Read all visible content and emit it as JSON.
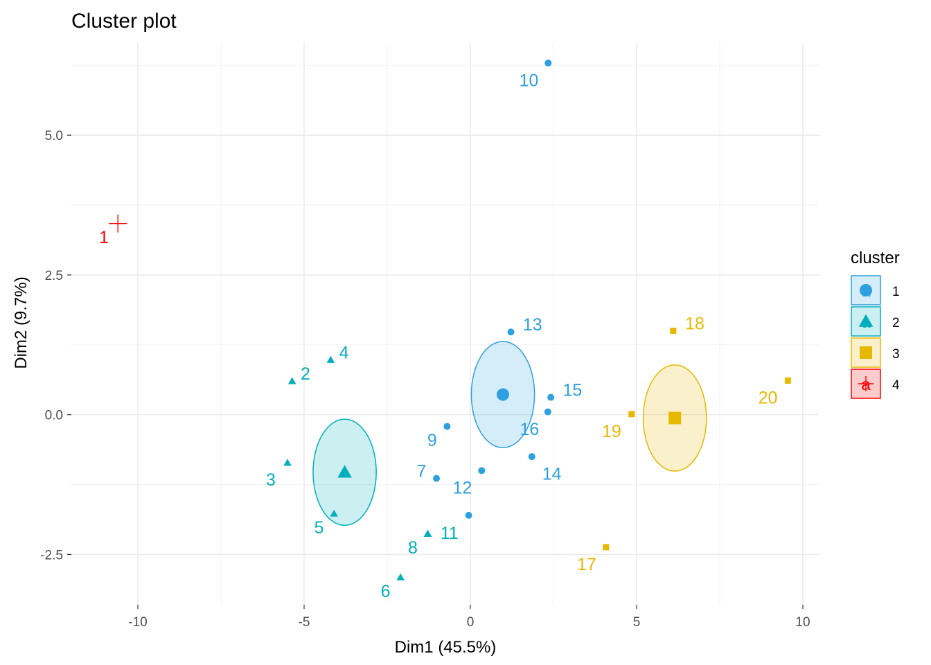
{
  "chart_data": {
    "type": "scatter",
    "title": "Cluster plot",
    "xlabel": "Dim1 (45.5%)",
    "ylabel": "Dim2 (9.7%)",
    "xlim": [
      -12,
      10.5
    ],
    "ylim": [
      -3.4,
      6.65
    ],
    "x_ticks": [
      -10,
      -5,
      0,
      5,
      10
    ],
    "x_tick_labels": [
      "-10",
      "-5",
      "0",
      "5",
      "10"
    ],
    "y_ticks": [
      -2.5,
      0,
      2.5,
      5
    ],
    "y_tick_labels": [
      "-2.5",
      "0.0",
      "2.5",
      "5.0"
    ],
    "grid": true,
    "legend_title": "cluster",
    "legend_placement": "right",
    "legend_glyph": "a",
    "clusters": [
      {
        "id": "1",
        "color": "#2E9FDF",
        "shape": "circle",
        "center": [
          0.98,
          0.36
        ],
        "ellipse_radius": [
          0.95,
          0.95
        ]
      },
      {
        "id": "2",
        "color": "#00AFBB",
        "shape": "triangle",
        "center": [
          -3.78,
          -1.03
        ],
        "ellipse_radius": [
          0.95,
          0.95
        ]
      },
      {
        "id": "3",
        "color": "#E7B800",
        "shape": "square",
        "center": [
          6.15,
          -0.06
        ],
        "ellipse_radius": [
          0.95,
          0.95
        ]
      },
      {
        "id": "4",
        "color": "#FC0000",
        "shape": "cross",
        "center": [
          -10.6,
          3.42
        ],
        "ellipse_radius": [
          0,
          0
        ]
      }
    ],
    "points": [
      {
        "label": "1",
        "cluster": "4",
        "x": -10.6,
        "y": 3.42
      },
      {
        "label": "2",
        "cluster": "2",
        "x": -5.36,
        "y": 0.6
      },
      {
        "label": "3",
        "cluster": "2",
        "x": -5.5,
        "y": -0.86
      },
      {
        "label": "4",
        "cluster": "2",
        "x": -4.2,
        "y": 0.98
      },
      {
        "label": "5",
        "cluster": "2",
        "x": -4.1,
        "y": -1.77
      },
      {
        "label": "6",
        "cluster": "2",
        "x": -2.1,
        "y": -2.91
      },
      {
        "label": "7",
        "cluster": "1",
        "x": -1.02,
        "y": -1.14
      },
      {
        "label": "8",
        "cluster": "2",
        "x": -1.28,
        "y": -2.13
      },
      {
        "label": "9",
        "cluster": "1",
        "x": -0.7,
        "y": -0.21
      },
      {
        "label": "10",
        "cluster": "1",
        "x": 2.34,
        "y": 6.29
      },
      {
        "label": "11",
        "cluster": "2",
        "x": -1.28,
        "y": -2.13
      },
      {
        "label": "12",
        "cluster": "1",
        "x": 0.34,
        "y": -1.0
      },
      {
        "label": "13",
        "cluster": "1",
        "x": 1.22,
        "y": 1.48
      },
      {
        "label": "14",
        "cluster": "1",
        "x": 1.85,
        "y": -0.75
      },
      {
        "label": "15",
        "cluster": "1",
        "x": 2.42,
        "y": 0.31
      },
      {
        "label": "16",
        "cluster": "1",
        "x": 2.33,
        "y": 0.05
      },
      {
        "label": "17",
        "cluster": "3",
        "x": 4.08,
        "y": -2.37
      },
      {
        "label": "18",
        "cluster": "3",
        "x": 6.1,
        "y": 1.5
      },
      {
        "label": "19",
        "cluster": "3",
        "x": 4.85,
        "y": 0.01
      },
      {
        "label": "20",
        "cluster": "3",
        "x": 9.55,
        "y": 0.61
      },
      {
        "label": "",
        "cluster": "1",
        "x": -0.05,
        "y": -1.8
      }
    ],
    "label_offsets_data": [
      {
        "label": "1",
        "dx": -0.42,
        "dy": -0.24
      },
      {
        "label": "2",
        "dx": 0.4,
        "dy": 0.14
      },
      {
        "label": "3",
        "dx": -0.5,
        "dy": -0.3
      },
      {
        "label": "4",
        "dx": 0.4,
        "dy": 0.14
      },
      {
        "label": "5",
        "dx": -0.45,
        "dy": -0.24
      },
      {
        "label": "6",
        "dx": -0.45,
        "dy": -0.24
      },
      {
        "label": "7",
        "dx": -0.45,
        "dy": 0.14
      },
      {
        "label": "8",
        "dx": -0.45,
        "dy": -0.24
      },
      {
        "label": "9",
        "dx": -0.45,
        "dy": -0.24
      },
      {
        "label": "10",
        "dx": -0.58,
        "dy": -0.3
      },
      {
        "label": "11",
        "dx": 0.65,
        "dy": 0.02
      },
      {
        "label": "12",
        "dx": -0.58,
        "dy": -0.3
      },
      {
        "label": "13",
        "dx": 0.65,
        "dy": 0.14
      },
      {
        "label": "14",
        "dx": 0.6,
        "dy": -0.3
      },
      {
        "label": "15",
        "dx": 0.65,
        "dy": 0.14
      },
      {
        "label": "16",
        "dx": -0.55,
        "dy": -0.3
      },
      {
        "label": "17",
        "dx": -0.58,
        "dy": -0.3
      },
      {
        "label": "18",
        "dx": 0.65,
        "dy": 0.14
      },
      {
        "label": "19",
        "dx": -0.6,
        "dy": -0.3
      },
      {
        "label": "20",
        "dx": -0.6,
        "dy": -0.3
      }
    ]
  }
}
